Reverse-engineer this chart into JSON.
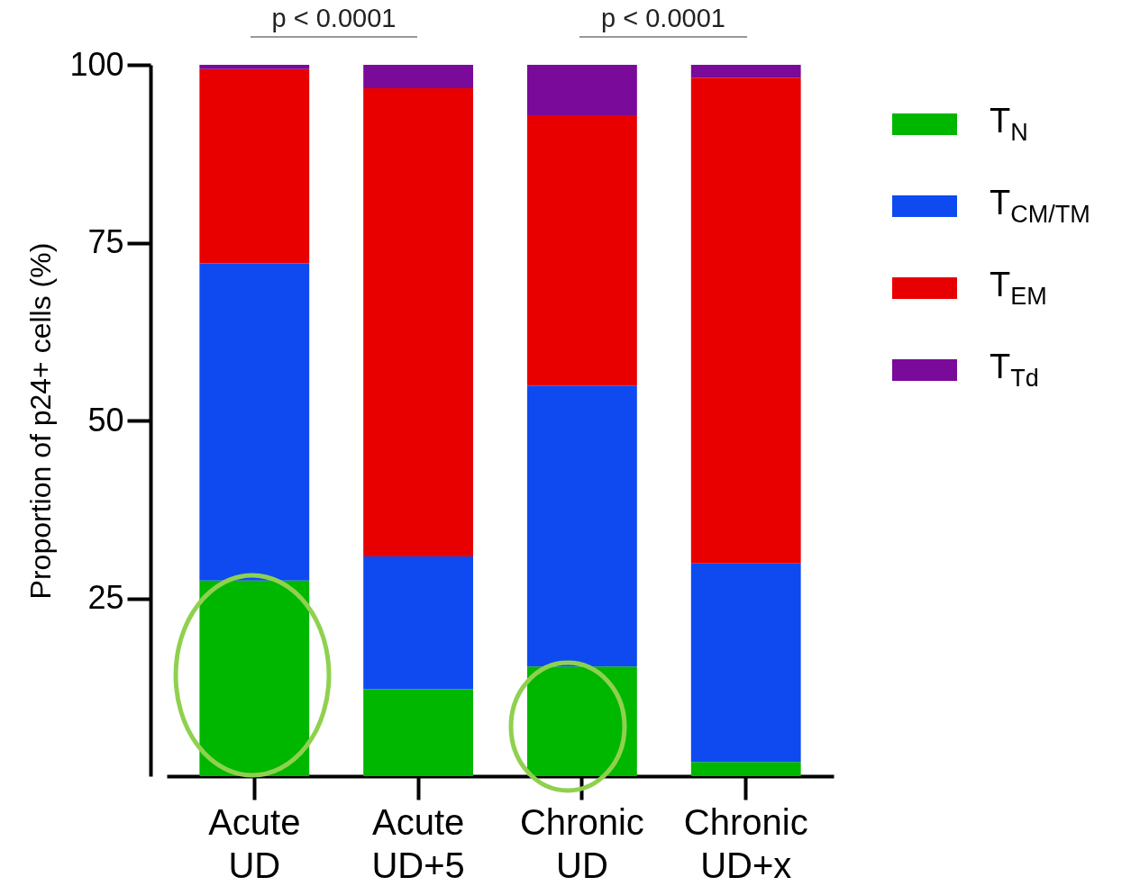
{
  "chart_data": {
    "type": "bar",
    "stacked": true,
    "ylabel": "Proportion of p24+ cells (%)",
    "categories": [
      "Acute UD",
      "Acute UD+5",
      "Chronic UD",
      "Chronic UD+x"
    ],
    "series": [
      {
        "name": "T$_{N}$",
        "color": "#00b700",
        "values": [
          27.5,
          12.2,
          15.4,
          2.0
        ]
      },
      {
        "name": "T$_{CM/TM}$",
        "color": "#0e4af0",
        "values": [
          44.6,
          18.7,
          39.5,
          27.9
        ]
      },
      {
        "name": "T$_{EM}$",
        "color": "#e80000",
        "values": [
          27.3,
          65.8,
          38.0,
          68.3
        ]
      },
      {
        "name": "T$_{Td}$",
        "color": "#7a0a99",
        "values": [
          0.6,
          3.3,
          7.1,
          1.8
        ]
      }
    ],
    "ylim": [
      0,
      100
    ],
    "yticks": [
      25,
      50,
      75,
      100
    ],
    "grid": false,
    "legend": "right",
    "annotations": [
      "p < 0.0001",
      "p < 0.0001"
    ]
  }
}
